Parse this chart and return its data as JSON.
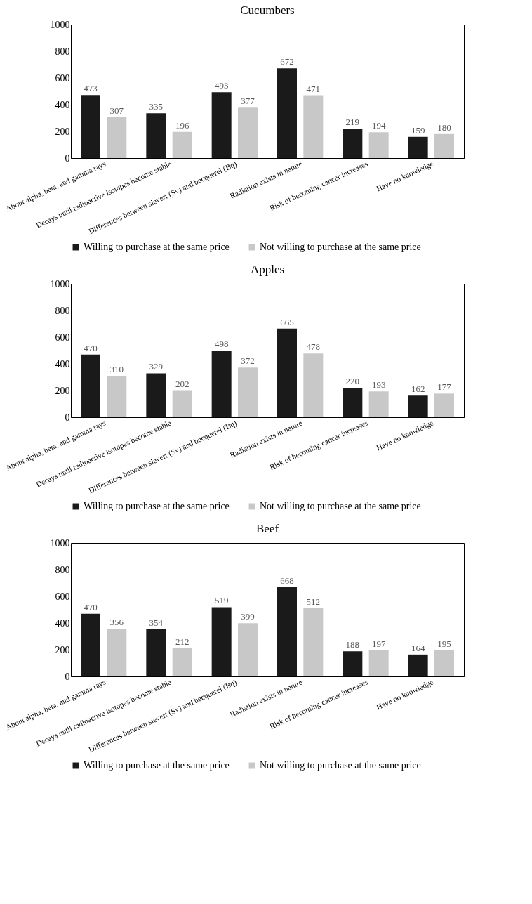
{
  "chart_data": [
    {
      "type": "bar",
      "title": "Cucumbers",
      "categories": [
        "About alpha, beta, and gamma rays",
        "Decays until radioactive isotopes become stable",
        "Differences between sievert (Sv) and becquerel (Bq)",
        "Radiation exists in nature",
        "Risk of becoming cancer increases",
        "Have no knowledge"
      ],
      "series": [
        {
          "name": "Willing to purchase at the same price",
          "color": "#1a1a1a",
          "values": [
            473,
            335,
            493,
            672,
            219,
            159
          ]
        },
        {
          "name": "Not willing to purchase at the same price",
          "color": "#c8c8c8",
          "values": [
            307,
            196,
            377,
            471,
            194,
            180
          ]
        }
      ],
      "ylim": [
        0,
        1000
      ],
      "yticks": [
        0,
        200,
        400,
        600,
        800,
        1000
      ],
      "data_labels": true,
      "legend": "bottom"
    },
    {
      "type": "bar",
      "title": "Apples",
      "categories": [
        "About alpha, beta, and gamma rays",
        "Decays until radioactive isotopes become stable",
        "Differences between sievert (Sv) and becquerel (Bq)",
        "Radiation exists in nature",
        "Risk of becoming cancer increases",
        "Have no knowledge"
      ],
      "series": [
        {
          "name": "Willing to purchase at the same price",
          "color": "#1a1a1a",
          "values": [
            470,
            329,
            498,
            665,
            220,
            162
          ]
        },
        {
          "name": "Not willing to purchase at the same price",
          "color": "#c8c8c8",
          "values": [
            310,
            202,
            372,
            478,
            193,
            177
          ]
        }
      ],
      "ylim": [
        0,
        1000
      ],
      "yticks": [
        0,
        200,
        400,
        600,
        800,
        1000
      ],
      "data_labels": true,
      "legend": "bottom"
    },
    {
      "type": "bar",
      "title": "Beef",
      "categories": [
        "About alpha, beta, and gamma rays",
        "Decays until radioactive isotopes become stable",
        "Differences between sievert (Sv) and becquerel (Bq)",
        "Radiation exists in nature",
        "Risk of becoming cancer increases",
        "Have no knowledge"
      ],
      "series": [
        {
          "name": "Willing to purchase at the same price",
          "color": "#1a1a1a",
          "values": [
            470,
            354,
            519,
            668,
            188,
            164
          ]
        },
        {
          "name": "Not willing to purchase at the same price",
          "color": "#c8c8c8",
          "values": [
            356,
            212,
            399,
            512,
            197,
            195
          ]
        }
      ],
      "ylim": [
        0,
        1000
      ],
      "yticks": [
        0,
        200,
        400,
        600,
        800,
        1000
      ],
      "data_labels": true,
      "legend": "bottom"
    }
  ]
}
